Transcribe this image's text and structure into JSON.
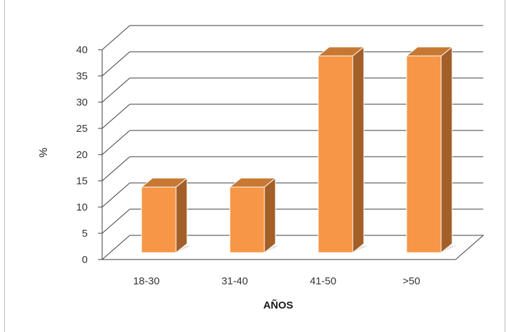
{
  "chart_data": {
    "type": "bar",
    "categories": [
      "18-30",
      "31-40",
      "41-50",
      ">50"
    ],
    "values": [
      12.5,
      12.5,
      37.5,
      37.5
    ],
    "xlabel": "AÑOS",
    "ylabel": "%",
    "ylim": [
      0,
      40
    ],
    "yticks": [
      "0",
      "5",
      "10",
      "15",
      "20",
      "25",
      "30",
      "35",
      "40"
    ],
    "grid": true,
    "legend": "none",
    "style": "3d-column",
    "colors": {
      "bar_front": "#F79646",
      "bar_side": "#A35F28",
      "bar_top": "#C77832",
      "bar_border": "#ffffff",
      "grid": "#3a3a3a",
      "floor": "#3a3a3a"
    }
  }
}
